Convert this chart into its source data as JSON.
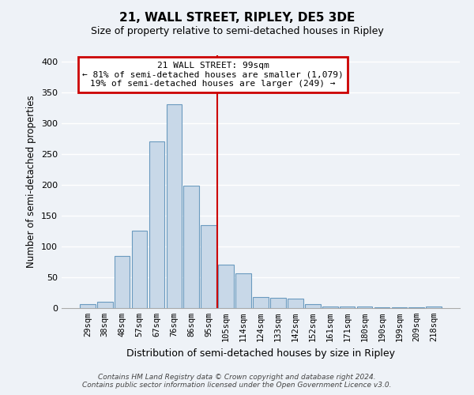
{
  "title": "21, WALL STREET, RIPLEY, DE5 3DE",
  "subtitle": "Size of property relative to semi-detached houses in Ripley",
  "xlabel": "Distribution of semi-detached houses by size in Ripley",
  "ylabel": "Number of semi-detached properties",
  "bin_labels": [
    "29sqm",
    "38sqm",
    "48sqm",
    "57sqm",
    "67sqm",
    "76sqm",
    "86sqm",
    "95sqm",
    "105sqm",
    "114sqm",
    "124sqm",
    "133sqm",
    "142sqm",
    "152sqm",
    "161sqm",
    "171sqm",
    "180sqm",
    "190sqm",
    "199sqm",
    "209sqm",
    "218sqm"
  ],
  "bar_heights": [
    7,
    10,
    85,
    125,
    270,
    330,
    199,
    135,
    70,
    56,
    18,
    17,
    15,
    7,
    2,
    2,
    2,
    1,
    1,
    1,
    3
  ],
  "bar_color": "#c8d8e8",
  "bar_edge_color": "#6a9abf",
  "annotation_title": "21 WALL STREET: 99sqm",
  "annotation_line1": "← 81% of semi-detached houses are smaller (1,079)",
  "annotation_line2": "19% of semi-detached houses are larger (249) →",
  "annotation_box_color": "#ffffff",
  "annotation_box_edge": "#cc0000",
  "property_line_color": "#cc0000",
  "footer1": "Contains HM Land Registry data © Crown copyright and database right 2024.",
  "footer2": "Contains public sector information licensed under the Open Government Licence v3.0.",
  "ylim": [
    0,
    410
  ],
  "background_color": "#eef2f7"
}
